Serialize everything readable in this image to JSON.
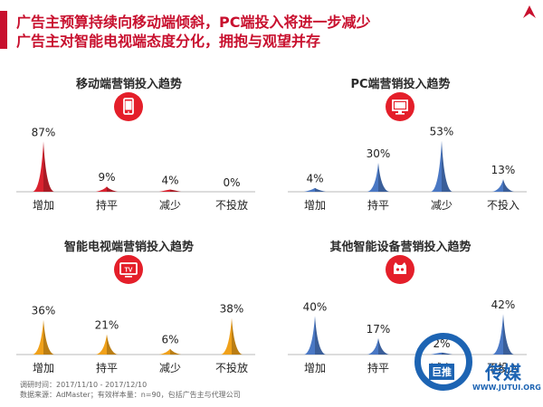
{
  "header": {
    "line1": "广告主预算持续向移动端倾斜，PC端投入将进一步减少",
    "line2": "广告主对智能电视端态度分化，拥抱与观望并存"
  },
  "colors": {
    "brand": "#c8102e",
    "mobile": "#d9222f",
    "pc": "#4a78c4",
    "tv": "#f0a11a",
    "other": "#4a78c4"
  },
  "chart_data": [
    {
      "type": "area",
      "title": "移动端营销投入趋势",
      "icon": "mobile-phone-icon",
      "categories": [
        "增加",
        "持平",
        "减少",
        "不投放"
      ],
      "values": [
        87,
        9,
        4,
        0
      ],
      "labels": [
        "87%",
        "9%",
        "4%",
        "0%"
      ],
      "unit": "%",
      "color": "#d9222f"
    },
    {
      "type": "area",
      "title": "PC端营销投入趋势",
      "icon": "computer-monitor-icon",
      "categories": [
        "增加",
        "持平",
        "减少",
        "不投入"
      ],
      "values": [
        4,
        30,
        53,
        13
      ],
      "labels": [
        "4%",
        "30%",
        "53%",
        "13%"
      ],
      "unit": "%",
      "color": "#4a78c4"
    },
    {
      "type": "area",
      "title": "智能电视端营销投入趋势",
      "icon": "tv-icon",
      "icon_text": "TV",
      "categories": [
        "增加",
        "持平",
        "减少",
        "不投放"
      ],
      "values": [
        36,
        21,
        6,
        38
      ],
      "labels": [
        "36%",
        "21%",
        "6%",
        "38%"
      ],
      "unit": "%",
      "color": "#f0a11a"
    },
    {
      "type": "area",
      "title": "其他智能设备营销投入趋势",
      "icon": "smart-device-icon",
      "categories": [
        "增加",
        "持平",
        "减少",
        "不投入"
      ],
      "values": [
        40,
        17,
        2,
        42
      ],
      "labels": [
        "40%",
        "17%",
        "2%",
        "42%"
      ],
      "unit": "%",
      "color": "#4a78c4"
    }
  ],
  "footer": {
    "line1": "调研时间：2017/11/10 - 2017/12/10",
    "line2": "数据来源：AdMaster；有效样本量：n=90，包括广告主与代理公司"
  },
  "watermark": {
    "tag": "巨推",
    "brand": "传媒",
    "url": "WWW.JUTUI.ORG"
  }
}
